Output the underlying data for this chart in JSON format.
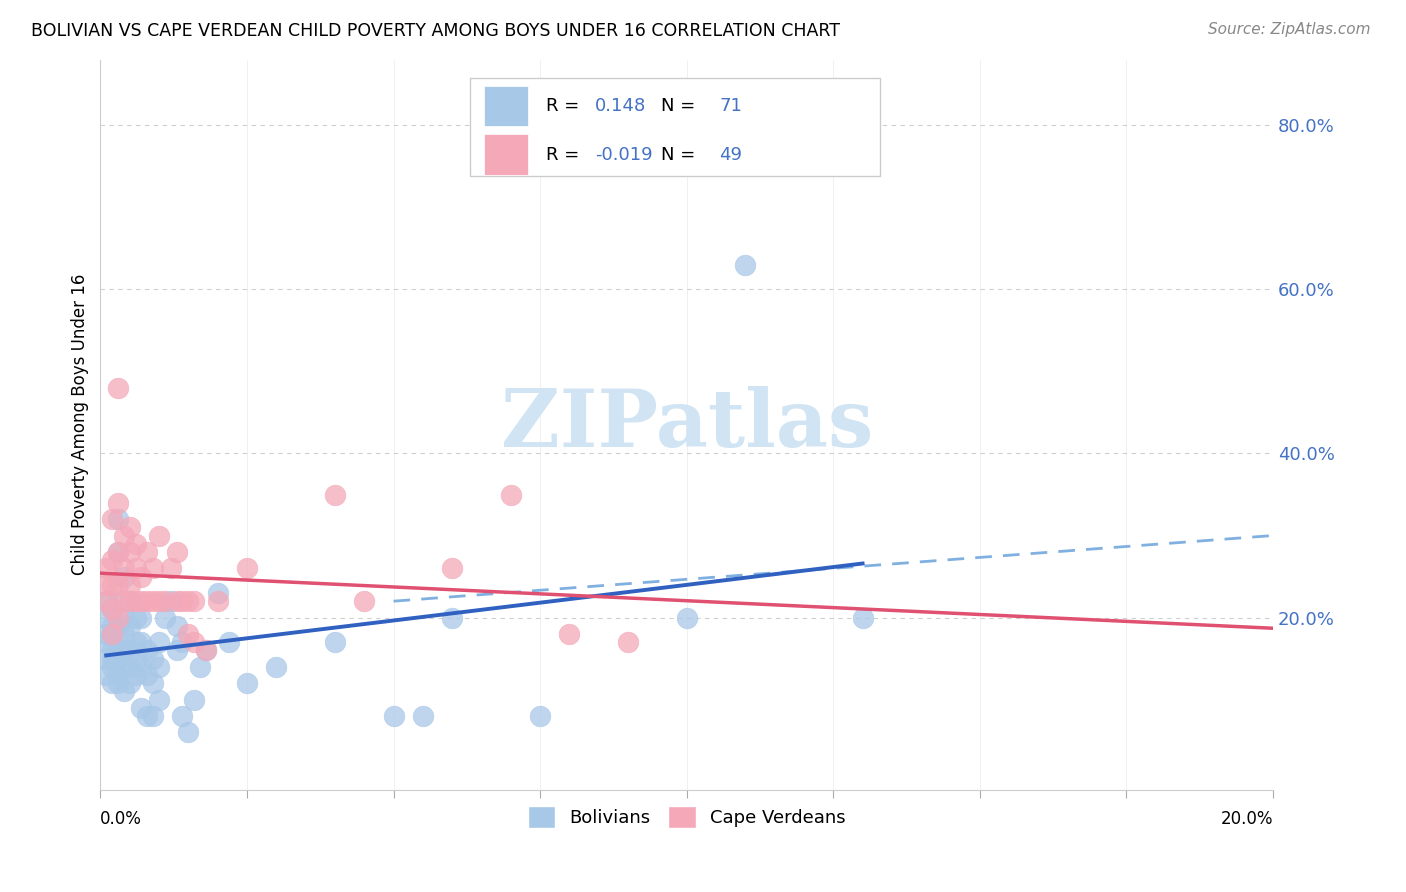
{
  "title": "BOLIVIAN VS CAPE VERDEAN CHILD POVERTY AMONG BOYS UNDER 16 CORRELATION CHART",
  "source": "Source: ZipAtlas.com",
  "ylabel": "Child Poverty Among Boys Under 16",
  "xlim": [
    0.0,
    0.2
  ],
  "ylim": [
    -0.01,
    0.88
  ],
  "blue_R": 0.148,
  "blue_N": 71,
  "pink_R": -0.019,
  "pink_N": 49,
  "blue_color": "#a8c8e8",
  "pink_color": "#f4a8b8",
  "blue_line_color": "#3060c0",
  "pink_line_color": "#e05070",
  "dash_line_color": "#80b0e0",
  "watermark_color": "#d0e4f4",
  "background_color": "#ffffff",
  "grid_color": "#d0d0d0",
  "blue_scatter": [
    [
      0.001,
      0.13
    ],
    [
      0.001,
      0.15
    ],
    [
      0.001,
      0.17
    ],
    [
      0.001,
      0.18
    ],
    [
      0.001,
      0.2
    ],
    [
      0.001,
      0.22
    ],
    [
      0.002,
      0.12
    ],
    [
      0.002,
      0.14
    ],
    [
      0.002,
      0.15
    ],
    [
      0.002,
      0.16
    ],
    [
      0.002,
      0.18
    ],
    [
      0.002,
      0.19
    ],
    [
      0.002,
      0.21
    ],
    [
      0.003,
      0.12
    ],
    [
      0.003,
      0.13
    ],
    [
      0.003,
      0.15
    ],
    [
      0.003,
      0.17
    ],
    [
      0.003,
      0.19
    ],
    [
      0.003,
      0.22
    ],
    [
      0.003,
      0.28
    ],
    [
      0.003,
      0.32
    ],
    [
      0.004,
      0.11
    ],
    [
      0.004,
      0.14
    ],
    [
      0.004,
      0.16
    ],
    [
      0.004,
      0.18
    ],
    [
      0.004,
      0.2
    ],
    [
      0.004,
      0.25
    ],
    [
      0.005,
      0.12
    ],
    [
      0.005,
      0.14
    ],
    [
      0.005,
      0.16
    ],
    [
      0.005,
      0.19
    ],
    [
      0.005,
      0.22
    ],
    [
      0.006,
      0.13
    ],
    [
      0.006,
      0.15
    ],
    [
      0.006,
      0.17
    ],
    [
      0.006,
      0.2
    ],
    [
      0.007,
      0.09
    ],
    [
      0.007,
      0.14
    ],
    [
      0.007,
      0.17
    ],
    [
      0.007,
      0.2
    ],
    [
      0.008,
      0.08
    ],
    [
      0.008,
      0.13
    ],
    [
      0.008,
      0.16
    ],
    [
      0.009,
      0.08
    ],
    [
      0.009,
      0.12
    ],
    [
      0.009,
      0.15
    ],
    [
      0.01,
      0.1
    ],
    [
      0.01,
      0.14
    ],
    [
      0.01,
      0.17
    ],
    [
      0.011,
      0.2
    ],
    [
      0.012,
      0.22
    ],
    [
      0.013,
      0.16
    ],
    [
      0.013,
      0.19
    ],
    [
      0.014,
      0.08
    ],
    [
      0.014,
      0.17
    ],
    [
      0.015,
      0.06
    ],
    [
      0.016,
      0.1
    ],
    [
      0.017,
      0.14
    ],
    [
      0.018,
      0.16
    ],
    [
      0.02,
      0.23
    ],
    [
      0.022,
      0.17
    ],
    [
      0.025,
      0.12
    ],
    [
      0.03,
      0.14
    ],
    [
      0.04,
      0.17
    ],
    [
      0.05,
      0.08
    ],
    [
      0.055,
      0.08
    ],
    [
      0.06,
      0.2
    ],
    [
      0.075,
      0.08
    ],
    [
      0.1,
      0.2
    ],
    [
      0.11,
      0.63
    ],
    [
      0.13,
      0.2
    ]
  ],
  "pink_scatter": [
    [
      0.001,
      0.22
    ],
    [
      0.001,
      0.24
    ],
    [
      0.001,
      0.26
    ],
    [
      0.002,
      0.18
    ],
    [
      0.002,
      0.21
    ],
    [
      0.002,
      0.24
    ],
    [
      0.002,
      0.27
    ],
    [
      0.002,
      0.32
    ],
    [
      0.003,
      0.2
    ],
    [
      0.003,
      0.24
    ],
    [
      0.003,
      0.28
    ],
    [
      0.003,
      0.34
    ],
    [
      0.003,
      0.48
    ],
    [
      0.004,
      0.22
    ],
    [
      0.004,
      0.26
    ],
    [
      0.004,
      0.3
    ],
    [
      0.005,
      0.22
    ],
    [
      0.005,
      0.24
    ],
    [
      0.005,
      0.28
    ],
    [
      0.005,
      0.31
    ],
    [
      0.006,
      0.22
    ],
    [
      0.006,
      0.26
    ],
    [
      0.006,
      0.29
    ],
    [
      0.007,
      0.22
    ],
    [
      0.007,
      0.25
    ],
    [
      0.008,
      0.22
    ],
    [
      0.008,
      0.28
    ],
    [
      0.009,
      0.22
    ],
    [
      0.009,
      0.26
    ],
    [
      0.01,
      0.22
    ],
    [
      0.01,
      0.3
    ],
    [
      0.011,
      0.22
    ],
    [
      0.012,
      0.26
    ],
    [
      0.013,
      0.22
    ],
    [
      0.013,
      0.28
    ],
    [
      0.014,
      0.22
    ],
    [
      0.015,
      0.18
    ],
    [
      0.015,
      0.22
    ],
    [
      0.016,
      0.17
    ],
    [
      0.016,
      0.22
    ],
    [
      0.018,
      0.16
    ],
    [
      0.02,
      0.22
    ],
    [
      0.025,
      0.26
    ],
    [
      0.04,
      0.35
    ],
    [
      0.045,
      0.22
    ],
    [
      0.06,
      0.26
    ],
    [
      0.07,
      0.35
    ],
    [
      0.08,
      0.18
    ],
    [
      0.09,
      0.17
    ]
  ]
}
